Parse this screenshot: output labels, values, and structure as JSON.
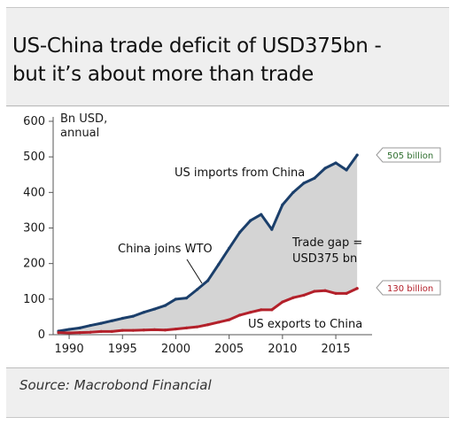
{
  "header": {
    "title_line1": "US-China trade deficit of USD375bn -",
    "title_line2": "but it’s about more than trade"
  },
  "source": "Source: Macrobond Financial",
  "colors": {
    "imports": "#1b3f6b",
    "exports": "#b3202a",
    "gap_fill": "#d4d4d4",
    "imports_callout_text": "#2f6f2f",
    "exports_callout_text": "#b3202a"
  },
  "chart_data": {
    "type": "line",
    "ylabel": "Bn USD,\nannual",
    "ylabel_line1": "Bn USD,",
    "ylabel_line2": "annual",
    "ylim": [
      0,
      600
    ],
    "xlim": [
      1988.5,
      2018.4
    ],
    "y_ticks": [
      "0",
      "100",
      "200",
      "300",
      "400",
      "500",
      "600"
    ],
    "x_ticks": [
      "1990",
      "1995",
      "2000",
      "2005",
      "2010",
      "2015"
    ],
    "grid": false,
    "series": [
      {
        "name": "US imports from China",
        "x": [
          1989,
          1990,
          1991,
          1992,
          1993,
          1994,
          1995,
          1996,
          1997,
          1998,
          1999,
          2000,
          2001,
          2002,
          2003,
          2004,
          2005,
          2006,
          2007,
          2008,
          2009,
          2010,
          2011,
          2012,
          2013,
          2014,
          2015,
          2016,
          2017
        ],
        "values": [
          10,
          15,
          19,
          26,
          32,
          39,
          46,
          52,
          63,
          72,
          82,
          100,
          103,
          127,
          152,
          197,
          243,
          288,
          321,
          338,
          296,
          365,
          400,
          426,
          440,
          468,
          483,
          463,
          505
        ]
      },
      {
        "name": "US exports to China",
        "x": [
          1989,
          1990,
          1991,
          1992,
          1993,
          1994,
          1995,
          1996,
          1997,
          1998,
          1999,
          2000,
          2001,
          2002,
          2003,
          2004,
          2005,
          2006,
          2007,
          2008,
          2009,
          2010,
          2011,
          2012,
          2013,
          2014,
          2015,
          2016,
          2017
        ],
        "values": [
          6,
          5,
          6,
          7,
          9,
          9,
          12,
          12,
          13,
          14,
          13,
          16,
          19,
          22,
          28,
          35,
          42,
          55,
          63,
          70,
          70,
          92,
          104,
          111,
          122,
          124,
          116,
          116,
          130
        ]
      }
    ],
    "annotations": {
      "wto": "China joins WTO",
      "gap_line1": "Trade gap =",
      "gap_line2": "USD375 bn",
      "imports_end": "505 billion",
      "exports_end": "130 billion"
    }
  }
}
